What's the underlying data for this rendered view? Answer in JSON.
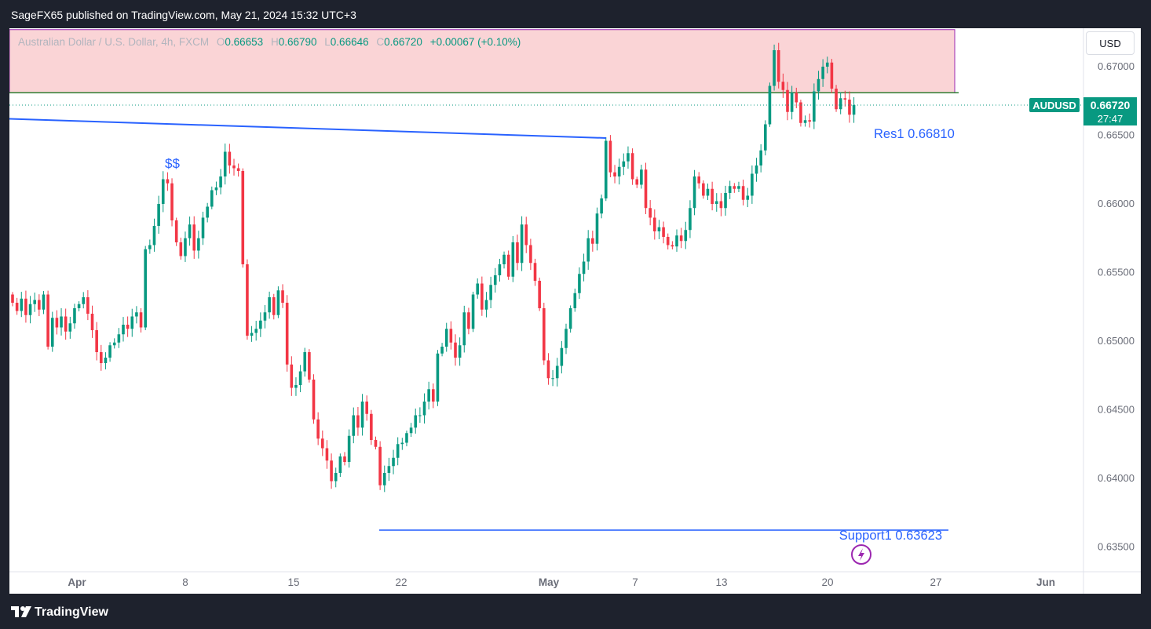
{
  "header": {
    "published_text": "SageFX65 published on TradingView.com, May 21, 2024 15:32 UTC+3"
  },
  "legend": {
    "symbol_desc": "Australian Dollar / U.S. Dollar, 4h, FXCM",
    "o_label": "O",
    "o_value": "0.66653",
    "h_label": "H",
    "h_value": "0.66790",
    "l_label": "L",
    "l_value": "0.66646",
    "c_label": "C",
    "c_value": "0.66720",
    "change": "+0.00067 (+0.10%)"
  },
  "currency_button": "USD",
  "footer": {
    "brand": "TradingView"
  },
  "colors": {
    "up": "#089981",
    "down": "#f23645",
    "line": "#2962ff",
    "zone_fill": "#fad4d6",
    "zone_border": "#9c27b0"
  },
  "chart_data": {
    "type": "candlestick",
    "symbol": "AUDUSD",
    "timeframe": "4h",
    "y_range": [
      0.6332,
      0.6728
    ],
    "y_ticks": [
      "0.67000",
      "0.66500",
      "0.66000",
      "0.65500",
      "0.65000",
      "0.64500",
      "0.64000",
      "0.63500"
    ],
    "x_tick_labels": [
      "Apr",
      "8",
      "15",
      "22",
      "May",
      "7",
      "13",
      "20",
      "27",
      "Jun"
    ],
    "last_price": {
      "symbol": "AUDUSD",
      "price": "0.66720",
      "countdown": "27:47"
    },
    "closes": [
      0.6528,
      0.6522,
      0.6531,
      0.6519,
      0.6527,
      0.653,
      0.6523,
      0.6534,
      0.6496,
      0.6517,
      0.651,
      0.6518,
      0.6507,
      0.6513,
      0.6524,
      0.6527,
      0.6532,
      0.652,
      0.6508,
      0.6492,
      0.6484,
      0.6488,
      0.6497,
      0.6499,
      0.6505,
      0.6512,
      0.6509,
      0.6518,
      0.6521,
      0.651,
      0.6567,
      0.657,
      0.6584,
      0.66,
      0.6618,
      0.6615,
      0.6588,
      0.6572,
      0.6562,
      0.6575,
      0.6585,
      0.6566,
      0.6575,
      0.659,
      0.6598,
      0.661,
      0.6612,
      0.662,
      0.6638,
      0.6628,
      0.6626,
      0.6624,
      0.6556,
      0.6504,
      0.6506,
      0.6509,
      0.6515,
      0.6521,
      0.6532,
      0.6519,
      0.6537,
      0.6528,
      0.6483,
      0.6466,
      0.6468,
      0.6478,
      0.6492,
      0.6472,
      0.6443,
      0.6429,
      0.6422,
      0.6413,
      0.6398,
      0.6404,
      0.6416,
      0.6412,
      0.6431,
      0.6446,
      0.6437,
      0.6456,
      0.6447,
      0.6428,
      0.6423,
      0.6395,
      0.6404,
      0.6409,
      0.6415,
      0.6425,
      0.6426,
      0.6433,
      0.6437,
      0.6446,
      0.6446,
      0.6456,
      0.6465,
      0.6456,
      0.6491,
      0.6496,
      0.6509,
      0.6499,
      0.6488,
      0.6497,
      0.6521,
      0.6509,
      0.6534,
      0.6542,
      0.6523,
      0.653,
      0.6541,
      0.6548,
      0.6556,
      0.6563,
      0.6547,
      0.6572,
      0.6557,
      0.6585,
      0.657,
      0.6557,
      0.6544,
      0.6524,
      0.6486,
      0.6473,
      0.6473,
      0.6482,
      0.6495,
      0.6509,
      0.6524,
      0.6535,
      0.6549,
      0.6558,
      0.6575,
      0.6571,
      0.6593,
      0.6604,
      0.6646,
      0.6623,
      0.662,
      0.6627,
      0.6631,
      0.6637,
      0.6618,
      0.6614,
      0.6625,
      0.6597,
      0.659,
      0.658,
      0.6583,
      0.6576,
      0.657,
      0.6569,
      0.6577,
      0.6573,
      0.6581,
      0.6597,
      0.662,
      0.6615,
      0.6606,
      0.6611,
      0.66,
      0.6602,
      0.6597,
      0.6608,
      0.6613,
      0.6611,
      0.6613,
      0.6603,
      0.6606,
      0.6622,
      0.6628,
      0.6639,
      0.6658,
      0.6686,
      0.6712,
      0.6689,
      0.6683,
      0.6667,
      0.6681,
      0.6674,
      0.6659,
      0.6661,
      0.666,
      0.6682,
      0.6691,
      0.67,
      0.6703,
      0.6684,
      0.6669,
      0.6677,
      0.6676,
      0.6665,
      0.6672
    ],
    "annotations": [
      {
        "label": "Res1",
        "value": 0.6681,
        "display": "0.66810"
      },
      {
        "label": "Support1",
        "value": 0.63623,
        "display": "0.63623"
      },
      {
        "label": "$$"
      }
    ],
    "zone": {
      "from": 0.6681,
      "to": 0.6727
    },
    "trendline": {
      "from": 0.6662,
      "to": 0.6648
    },
    "grid": false
  }
}
